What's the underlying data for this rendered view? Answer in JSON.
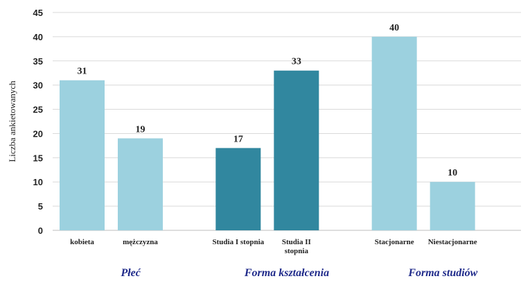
{
  "chart_data": {
    "type": "bar",
    "ylabel": "Liczba ankietowanych",
    "ylim": [
      0,
      45
    ],
    "yticks": [
      0,
      5,
      10,
      15,
      20,
      25,
      30,
      35,
      40,
      45
    ],
    "grid": "horizontal",
    "data_labels": true,
    "groups": [
      {
        "name": "Płeć",
        "color": "#9cd1df",
        "categories": [
          {
            "lines": [
              "kobieta"
            ],
            "value": 31
          },
          {
            "lines": [
              "mężczyzna"
            ],
            "value": 19
          }
        ]
      },
      {
        "name": "Forma kształcenia",
        "color": "#31879f",
        "categories": [
          {
            "lines": [
              "Studia I stopnia"
            ],
            "value": 17
          },
          {
            "lines": [
              "Studia II",
              "stopnia"
            ],
            "value": 33
          }
        ]
      },
      {
        "name": "Forma studiów",
        "color": "#9cd1df",
        "categories": [
          {
            "lines": [
              "Stacjonarne"
            ],
            "value": 40
          },
          {
            "lines": [
              "Niestacjonarne"
            ],
            "value": 10
          }
        ]
      }
    ]
  }
}
